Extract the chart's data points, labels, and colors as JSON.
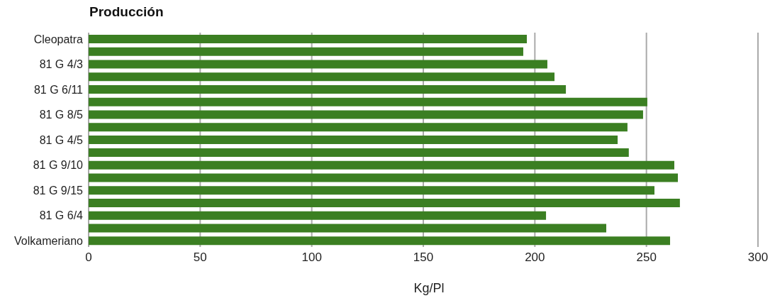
{
  "chart_data": {
    "type": "bar",
    "orientation": "horizontal",
    "title": "Producción",
    "xlabel": "Kg/Pl",
    "categories": [
      "Cleopatra",
      null,
      "81 G 4/3",
      null,
      "81 G 6/11",
      null,
      "81 G 8/5",
      null,
      "81 G 4/5",
      null,
      "81 G 9/10",
      null,
      "81 G 9/15",
      null,
      "81 G 6/4",
      null,
      "Volkameriano"
    ],
    "values": [
      196.4,
      194.8,
      205.6,
      208.8,
      213.9,
      250.4,
      248.5,
      241.5,
      237.1,
      242.1,
      262.5,
      264.1,
      253.6,
      265.0,
      205,
      232,
      260.6
    ],
    "color": "#3b7f22",
    "xlim": [
      0,
      300
    ],
    "xticks": [
      0,
      50,
      100,
      150,
      200,
      250,
      300
    ],
    "grid": "x",
    "legend": false
  }
}
